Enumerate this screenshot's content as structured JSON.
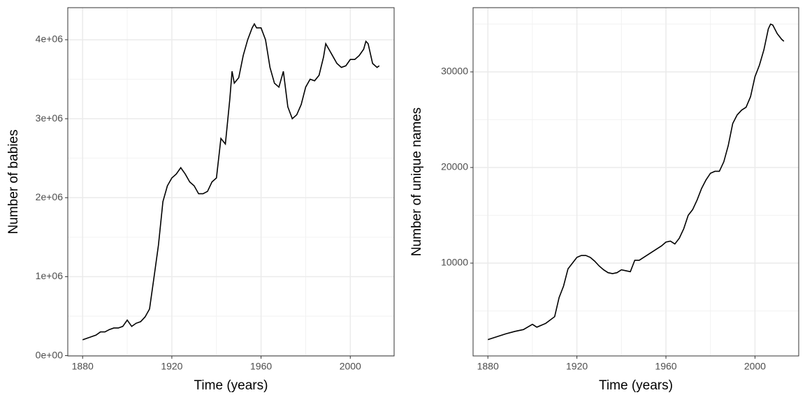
{
  "chart_data": [
    {
      "type": "line",
      "xlabel": "Time (years)",
      "ylabel": "Number of babies",
      "color": "#000000",
      "grid": true,
      "xlim": [
        1873.35,
        2019.65
      ],
      "xticks": [
        1880,
        1920,
        1960,
        2000
      ],
      "minor_xticks": [
        1900,
        1940,
        1980
      ],
      "ylim": [
        -4000,
        4406000
      ],
      "yticks": [
        {
          "value": 0,
          "label": "0e+00"
        },
        {
          "value": 1000000,
          "label": "1e+06"
        },
        {
          "value": 2000000,
          "label": "2e+06"
        },
        {
          "value": 3000000,
          "label": "3e+06"
        },
        {
          "value": 4000000,
          "label": "4e+06"
        }
      ],
      "minor_yticks": [
        500000,
        1500000,
        2500000,
        3500000
      ],
      "x": [
        1880,
        1882,
        1884,
        1886,
        1888,
        1890,
        1892,
        1894,
        1896,
        1898,
        1900,
        1902,
        1904,
        1906,
        1908,
        1910,
        1912,
        1914,
        1916,
        1918,
        1920,
        1922,
        1924,
        1926,
        1928,
        1930,
        1932,
        1934,
        1936,
        1938,
        1940,
        1942,
        1944,
        1946,
        1947,
        1948,
        1950,
        1952,
        1954,
        1956,
        1957,
        1958,
        1960,
        1962,
        1964,
        1966,
        1968,
        1970,
        1972,
        1974,
        1976,
        1978,
        1980,
        1982,
        1984,
        1986,
        1988,
        1989,
        1990,
        1992,
        1994,
        1996,
        1998,
        2000,
        2002,
        2004,
        2006,
        2007,
        2008,
        2010,
        2012,
        2013
      ],
      "values": [
        200000,
        220000,
        240000,
        260000,
        300000,
        300000,
        330000,
        350000,
        350000,
        370000,
        450000,
        370000,
        410000,
        430000,
        490000,
        590000,
        990000,
        1400000,
        1950000,
        2150000,
        2250000,
        2300000,
        2380000,
        2300000,
        2200000,
        2150000,
        2050000,
        2050000,
        2080000,
        2200000,
        2250000,
        2750000,
        2680000,
        3250000,
        3600000,
        3450000,
        3520000,
        3800000,
        4000000,
        4150000,
        4200000,
        4150000,
        4150000,
        4000000,
        3650000,
        3450000,
        3400000,
        3600000,
        3150000,
        3000000,
        3050000,
        3180000,
        3400000,
        3500000,
        3480000,
        3550000,
        3780000,
        3950000,
        3900000,
        3800000,
        3700000,
        3650000,
        3670000,
        3750000,
        3750000,
        3800000,
        3880000,
        3980000,
        3950000,
        3700000,
        3650000,
        3670000
      ]
    },
    {
      "type": "line",
      "xlabel": "Time (years)",
      "ylabel": "Number of unique names",
      "color": "#000000",
      "grid": true,
      "xlim": [
        1873.35,
        2019.65
      ],
      "xticks": [
        1880,
        1920,
        1960,
        2000
      ],
      "minor_xticks": [
        1900,
        1940,
        1980
      ],
      "ylim": [
        292,
        36715
      ],
      "yticks": [
        10000,
        20000,
        30000
      ],
      "minor_yticks": [
        5000,
        15000,
        25000,
        35000
      ],
      "x": [
        1880,
        1884,
        1888,
        1892,
        1896,
        1900,
        1902,
        1906,
        1910,
        1912,
        1914,
        1916,
        1918,
        1920,
        1922,
        1924,
        1926,
        1928,
        1930,
        1932,
        1934,
        1936,
        1938,
        1940,
        1942,
        1944,
        1946,
        1948,
        1950,
        1952,
        1954,
        1956,
        1958,
        1960,
        1962,
        1964,
        1966,
        1968,
        1970,
        1972,
        1974,
        1976,
        1978,
        1980,
        1982,
        1984,
        1986,
        1988,
        1990,
        1992,
        1994,
        1996,
        1998,
        2000,
        2002,
        2004,
        2006,
        2007,
        2008,
        2010,
        2012,
        2013
      ],
      "values": [
        2000,
        2300,
        2600,
        2850,
        3050,
        3600,
        3300,
        3700,
        4400,
        6400,
        7600,
        9400,
        10000,
        10600,
        10800,
        10800,
        10600,
        10200,
        9700,
        9300,
        9000,
        8900,
        9000,
        9300,
        9200,
        9100,
        10300,
        10300,
        10600,
        10900,
        11200,
        11500,
        11800,
        12200,
        12300,
        12000,
        12600,
        13600,
        15000,
        15600,
        16600,
        17800,
        18700,
        19400,
        19600,
        19600,
        20600,
        22300,
        24600,
        25500,
        26000,
        26300,
        27400,
        29500,
        30700,
        32300,
        34500,
        35000,
        34900,
        34000,
        33400,
        33200
      ]
    }
  ]
}
